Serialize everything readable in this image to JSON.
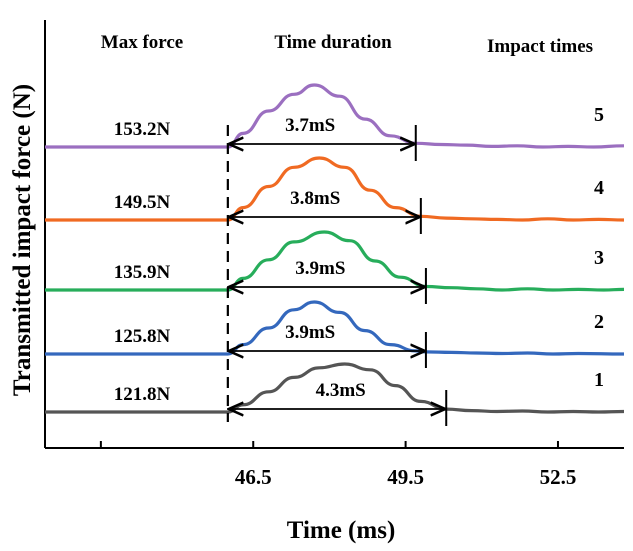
{
  "chart_data": {
    "type": "line",
    "title": "",
    "xlabel": "Time (ms)",
    "ylabel": "Transmitted impact force (N)",
    "xlim": [
      42.4,
      53.8
    ],
    "xticks": [
      43.5,
      46.5,
      49.5,
      52.5
    ],
    "xtick_labels": [
      "",
      "46.5",
      "49.5",
      "52.5"
    ],
    "headers": {
      "max_force": "Max force",
      "time_duration": "Time duration",
      "impact_times": "Impact times"
    },
    "impact_start": 46.0,
    "legend": "none",
    "grid": false,
    "series": [
      {
        "impact_label": "5",
        "max_force_label": "153.2N",
        "duration_label": "3.7mS",
        "color": "#9b6fc0",
        "start": 46.0,
        "end": 49.7,
        "peak_time": 47.7,
        "points": [
          [
            42.4,
            0
          ],
          [
            46.0,
            0
          ],
          [
            46.3,
            22
          ],
          [
            46.8,
            58
          ],
          [
            47.3,
            85
          ],
          [
            47.7,
            100
          ],
          [
            48.2,
            82
          ],
          [
            48.7,
            45
          ],
          [
            49.2,
            18
          ],
          [
            49.7,
            6
          ],
          [
            50.2,
            4
          ],
          [
            50.7,
            3
          ],
          [
            51.2,
            1
          ],
          [
            51.7,
            2
          ],
          [
            52.2,
            0
          ],
          [
            52.7,
            1
          ],
          [
            53.2,
            0
          ],
          [
            53.8,
            2
          ]
        ]
      },
      {
        "impact_label": "4",
        "max_force_label": "149.5N",
        "duration_label": "3.8mS",
        "color": "#f06a22",
        "start": 46.0,
        "end": 49.8,
        "peak_time": 47.8,
        "points": [
          [
            42.4,
            0
          ],
          [
            46.0,
            0
          ],
          [
            46.3,
            20
          ],
          [
            46.8,
            54
          ],
          [
            47.3,
            85
          ],
          [
            47.8,
            100
          ],
          [
            48.3,
            85
          ],
          [
            48.8,
            48
          ],
          [
            49.3,
            20
          ],
          [
            49.8,
            6
          ],
          [
            50.3,
            3
          ],
          [
            50.8,
            2
          ],
          [
            51.3,
            1
          ],
          [
            51.8,
            0
          ],
          [
            52.3,
            2
          ],
          [
            52.8,
            0
          ],
          [
            53.3,
            1
          ],
          [
            53.8,
            0
          ]
        ]
      },
      {
        "impact_label": "3",
        "max_force_label": "135.9N",
        "duration_label": "3.9mS",
        "color": "#27ad5b",
        "start": 46.0,
        "end": 49.9,
        "peak_time": 47.9,
        "points": [
          [
            42.4,
            0
          ],
          [
            46.0,
            0
          ],
          [
            46.3,
            20
          ],
          [
            46.8,
            52
          ],
          [
            47.3,
            83
          ],
          [
            47.9,
            100
          ],
          [
            48.4,
            85
          ],
          [
            48.9,
            50
          ],
          [
            49.4,
            22
          ],
          [
            49.9,
            6
          ],
          [
            50.4,
            4
          ],
          [
            50.9,
            2
          ],
          [
            51.4,
            0
          ],
          [
            51.9,
            2
          ],
          [
            52.4,
            0
          ],
          [
            52.9,
            1
          ],
          [
            53.4,
            0
          ],
          [
            53.8,
            1
          ]
        ]
      },
      {
        "impact_label": "2",
        "max_force_label": "125.8N",
        "duration_label": "3.9mS",
        "color": "#3468bd",
        "start": 46.0,
        "end": 49.9,
        "peak_time": 47.7,
        "points": [
          [
            42.4,
            0
          ],
          [
            46.0,
            0
          ],
          [
            46.3,
            18
          ],
          [
            46.8,
            50
          ],
          [
            47.3,
            85
          ],
          [
            47.7,
            100
          ],
          [
            48.2,
            80
          ],
          [
            48.7,
            45
          ],
          [
            49.2,
            18
          ],
          [
            49.7,
            6
          ],
          [
            49.9,
            4
          ],
          [
            50.4,
            3
          ],
          [
            50.9,
            2
          ],
          [
            51.4,
            1
          ],
          [
            51.9,
            2
          ],
          [
            52.4,
            0
          ],
          [
            52.9,
            1
          ],
          [
            53.8,
            0
          ]
        ]
      },
      {
        "impact_label": "1",
        "max_force_label": "121.8N",
        "duration_label": "4.3mS",
        "color": "#555555",
        "start": 46.0,
        "end": 50.3,
        "peak_time": 48.3,
        "points": [
          [
            42.4,
            0
          ],
          [
            46.0,
            0
          ],
          [
            46.3,
            15
          ],
          [
            46.8,
            42
          ],
          [
            47.3,
            72
          ],
          [
            47.8,
            92
          ],
          [
            48.3,
            100
          ],
          [
            48.8,
            88
          ],
          [
            49.3,
            55
          ],
          [
            49.8,
            22
          ],
          [
            50.3,
            6
          ],
          [
            50.8,
            3
          ],
          [
            51.3,
            1
          ],
          [
            51.8,
            2
          ],
          [
            52.3,
            0
          ],
          [
            52.8,
            1
          ],
          [
            53.3,
            0
          ],
          [
            53.8,
            1
          ]
        ]
      }
    ]
  }
}
